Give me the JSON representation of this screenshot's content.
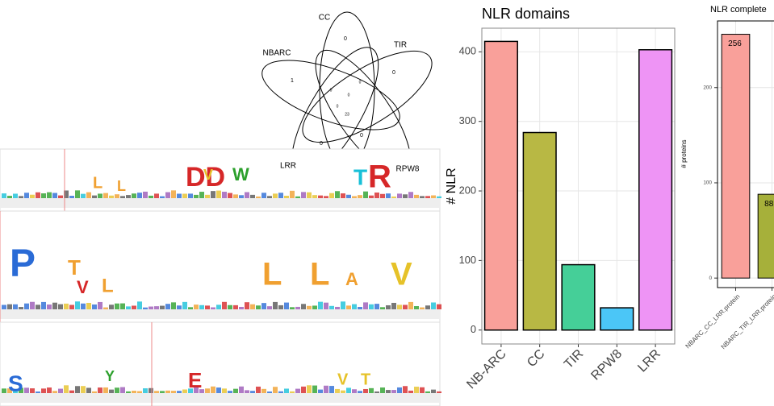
{
  "chart_data": [
    {
      "type": "bar",
      "title": "NLR domains",
      "y_label": "# NLR",
      "categories": [
        "NB-ARC",
        "CC",
        "TIR",
        "RPW8",
        "LRR"
      ],
      "values": [
        415,
        284,
        94,
        32,
        403
      ],
      "colors": [
        "#f9a09a",
        "#b8b844",
        "#45cf98",
        "#4bc6f7",
        "#ee94f5"
      ],
      "ylim": [
        -20,
        434
      ],
      "yticks": [
        0,
        100,
        200,
        300,
        400
      ],
      "grid": true
    },
    {
      "type": "bar",
      "title": "NLR complete",
      "y_label": "# proteins",
      "categories": [
        "NBARC_CC_LRR.protein",
        "NBARC_TIR_LRR.protein"
      ],
      "values": [
        256,
        88
      ],
      "value_labels": [
        "256",
        "88"
      ],
      "colors": [
        "#f9a09a",
        "#a6b03a"
      ],
      "ylim": [
        -10,
        270
      ],
      "yticks": [
        0,
        100,
        200
      ],
      "grid": true
    }
  ],
  "venn": {
    "sets": [
      "CC",
      "TIR",
      "NBARC",
      "LRR",
      "RPW8"
    ],
    "counts": [
      "0",
      "0",
      "1",
      "0",
      "0",
      "0",
      "23",
      "0",
      "0",
      "0"
    ]
  },
  "logos": [
    [
      "L",
      "L",
      "DD",
      "V",
      "W",
      "T",
      "R"
    ],
    [
      "P",
      "T",
      "V",
      "L",
      "L",
      "L",
      "A",
      "V"
    ],
    [
      "S",
      "Y",
      "E",
      "V",
      "T"
    ]
  ]
}
